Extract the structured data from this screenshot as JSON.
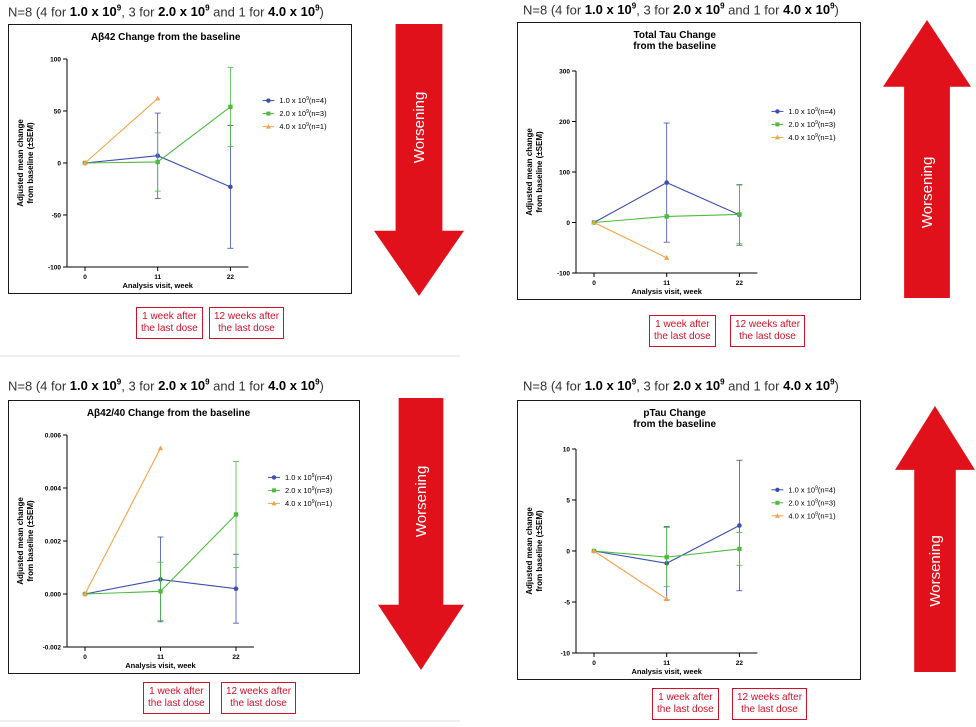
{
  "colors": {
    "series1": "#3b4fb0",
    "series2": "#4cbb3f",
    "series3": "#f2a24a",
    "arrow": "#e0111b",
    "annotation": "#d0102a"
  },
  "panels": [
    {
      "n_text": {
        "prefix": "N=8 (4 for ",
        "d1": "1.0 x 10",
        "m1": ", 3 for ",
        "d2": "2.0 x 10",
        "m2": " and 1 for ",
        "d3": "4.0 x 10",
        "exp": "9",
        "suffix": ")"
      },
      "arrow_label": "Worsening",
      "annotations": [
        {
          "line1": "1 week after",
          "line2": "the last dose"
        },
        {
          "line1": "12 weeks after",
          "line2": "the last dose"
        }
      ]
    },
    {
      "n_text": {
        "prefix": "N=8 (4 for ",
        "d1": "1.0 x 10",
        "m1": ", 3 for ",
        "d2": "2.0 x 10",
        "m2": " and 1 for ",
        "d3": "4.0 x 10",
        "exp": "9",
        "suffix": ")"
      },
      "arrow_label": "Worsening",
      "annotations": [
        {
          "line1": "1 week after",
          "line2": "the last dose"
        },
        {
          "line1": "12 weeks after",
          "line2": "the last dose"
        }
      ]
    },
    {
      "n_text": {
        "prefix": "N=8 (4 for ",
        "d1": "1.0 x 10",
        "m1": ", 3 for ",
        "d2": "2.0 x 10",
        "m2": " and 1 for ",
        "d3": "4.0 x 10",
        "exp": "9",
        "suffix": ")"
      },
      "arrow_label": "Worsening",
      "annotations": [
        {
          "line1": "1 week after",
          "line2": "the last dose"
        },
        {
          "line1": "12 weeks after",
          "line2": "the last dose"
        }
      ]
    },
    {
      "n_text": {
        "prefix": "N=8 (4 for ",
        "d1": "1.0 x 10",
        "m1": ", 3 for ",
        "d2": "2.0 x 10",
        "m2": " and 1 for ",
        "d3": "4.0 x 10",
        "exp": "9",
        "suffix": ")"
      },
      "arrow_label": "Worsening",
      "annotations": [
        {
          "line1": "1 week after",
          "line2": "the last dose"
        },
        {
          "line1": "12 weeks after",
          "line2": "the last dose"
        }
      ]
    }
  ],
  "chart_data": [
    {
      "type": "line",
      "title": [
        "Aβ42 Change from the baseline"
      ],
      "xlabel": "Analysis visit, week",
      "ylabel": [
        "Adjusted mean change",
        "from baseline (±SEM)"
      ],
      "categories": [
        "0",
        "11",
        "22"
      ],
      "ylim": [
        -100,
        100
      ],
      "yticks": [
        "100",
        "50",
        "0",
        "-50",
        "-100"
      ],
      "ytick_values": [
        100,
        50,
        0,
        -50,
        -100
      ],
      "series": [
        {
          "name": "1.0 x 10",
          "exp": "9",
          "suffix": "(n=4)",
          "values": [
            0,
            7,
            -23
          ],
          "errors": [
            0,
            41,
            59
          ]
        },
        {
          "name": "2.0 x 10",
          "exp": "9",
          "suffix": "(n=3)",
          "values": [
            0,
            1,
            54
          ],
          "errors": [
            0,
            28,
            38
          ]
        },
        {
          "name": "4.0 x 10",
          "exp": "9",
          "suffix": "(n=1)",
          "values": [
            0,
            62,
            null
          ],
          "errors": [
            0,
            0,
            null
          ]
        }
      ],
      "arrow_direction": "down"
    },
    {
      "type": "line",
      "title": [
        "Total Tau Change",
        "from the baseline"
      ],
      "xlabel": "Analysis visit, week",
      "ylabel": [
        "Adjusted mean change",
        "from baseline (±SEM)"
      ],
      "categories": [
        "0",
        "11",
        "22"
      ],
      "ylim": [
        -100,
        300
      ],
      "yticks": [
        "300",
        "200",
        "100",
        "0",
        "-100"
      ],
      "ytick_values": [
        300,
        200,
        100,
        0,
        -100
      ],
      "series": [
        {
          "name": "1.0 x 10",
          "exp": "9",
          "suffix": "(n=4)",
          "values": [
            0,
            79,
            15
          ],
          "errors": [
            0,
            118,
            60
          ]
        },
        {
          "name": "2.0 x 10",
          "exp": "9",
          "suffix": "(n=3)",
          "values": [
            0,
            12,
            16
          ],
          "errors": [
            0,
            0,
            58
          ]
        },
        {
          "name": "4.0 x 10",
          "exp": "9",
          "suffix": "(n=1)",
          "values": [
            0,
            -70,
            null
          ],
          "errors": [
            0,
            0,
            null
          ]
        }
      ],
      "arrow_direction": "up"
    },
    {
      "type": "line",
      "title": [
        "Aβ42/40 Change from the baseline"
      ],
      "xlabel": "Analysis visit, week",
      "ylabel": [
        "Adjusted mean change",
        "from baseline (±SEM)"
      ],
      "categories": [
        "0",
        "11",
        "22"
      ],
      "ylim": [
        -0.002,
        0.006
      ],
      "yticks": [
        "0.006",
        "0.004",
        "0.002",
        "0.000",
        "-0.002"
      ],
      "ytick_values": [
        0.006,
        0.004,
        0.002,
        0.0,
        -0.002
      ],
      "series": [
        {
          "name": "1.0 x 10",
          "exp": "9",
          "suffix": "(n=4)",
          "values": [
            0,
            0.00055,
            0.0002
          ],
          "errors": [
            0,
            0.0016,
            0.0013
          ]
        },
        {
          "name": "2.0 x 10",
          "exp": "9",
          "suffix": "(n=3)",
          "values": [
            0,
            0.0001,
            0.003
          ],
          "errors": [
            0,
            0.0011,
            0.002
          ]
        },
        {
          "name": "4.0 x 10",
          "exp": "9",
          "suffix": "(n=1)",
          "values": [
            0,
            0.0055,
            null
          ],
          "errors": [
            0,
            0,
            null
          ]
        }
      ],
      "arrow_direction": "down"
    },
    {
      "type": "line",
      "title": [
        "pTau Change",
        "from the baseline"
      ],
      "xlabel": "Analysis visit, week",
      "ylabel": [
        "Adjusted mean change",
        "from baseline (±SEM)"
      ],
      "categories": [
        "0",
        "11",
        "22"
      ],
      "ylim": [
        -10,
        10
      ],
      "yticks": [
        "10",
        "5",
        "0",
        "-5",
        "-10"
      ],
      "ytick_values": [
        10,
        5,
        0,
        -5,
        -10
      ],
      "series": [
        {
          "name": "1.0 x 10",
          "exp": "9",
          "suffix": "(n=4)",
          "values": [
            0,
            -1.2,
            2.5
          ],
          "errors": [
            0,
            3.6,
            6.4
          ]
        },
        {
          "name": "2.0 x 10",
          "exp": "9",
          "suffix": "(n=3)",
          "values": [
            0,
            -0.6,
            0.2
          ],
          "errors": [
            0,
            2.9,
            1.6
          ]
        },
        {
          "name": "4.0 x 10",
          "exp": "9",
          "suffix": "(n=1)",
          "values": [
            0,
            -4.7,
            null
          ],
          "errors": [
            0,
            0,
            null
          ]
        }
      ],
      "arrow_direction": "up"
    }
  ]
}
